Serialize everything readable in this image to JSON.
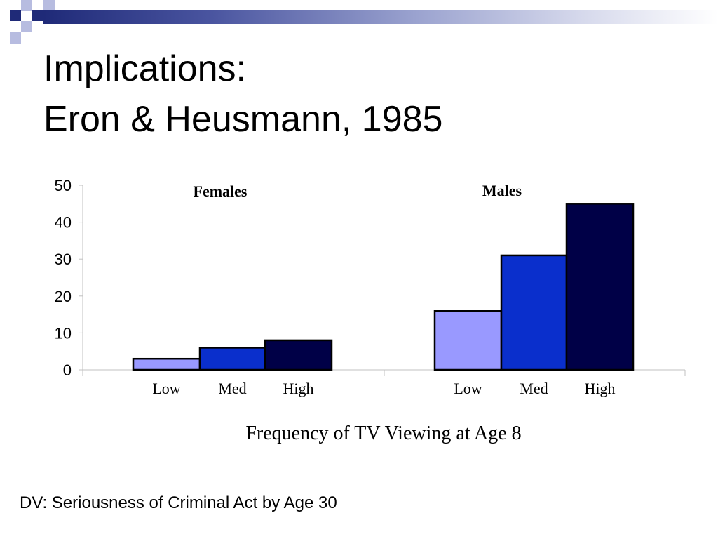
{
  "slide": {
    "title_line1": "Implications:",
    "title_line2": "Eron & Heusmann, 1985",
    "footnote": "DV: Seriousness of Criminal Act by Age 30"
  },
  "theme": {
    "decor_dark": "#1f2a78",
    "decor_light": "#b7bce0"
  },
  "chart_data": {
    "type": "bar",
    "xlabel": "Frequency of TV Viewing at Age 8",
    "ylabel": "",
    "ylim": [
      0,
      50
    ],
    "yticks": [
      0,
      10,
      20,
      30,
      40,
      50
    ],
    "grid": false,
    "groups": [
      {
        "name": "Females",
        "categories": [
          "Low",
          "Med",
          "High"
        ],
        "values": [
          3,
          6,
          8
        ]
      },
      {
        "name": "Males",
        "categories": [
          "Low",
          "Med",
          "High"
        ],
        "values": [
          16,
          31,
          45
        ]
      }
    ],
    "level_colors": [
      "#9999ff",
      "#0a2fcc",
      "#000047"
    ]
  }
}
